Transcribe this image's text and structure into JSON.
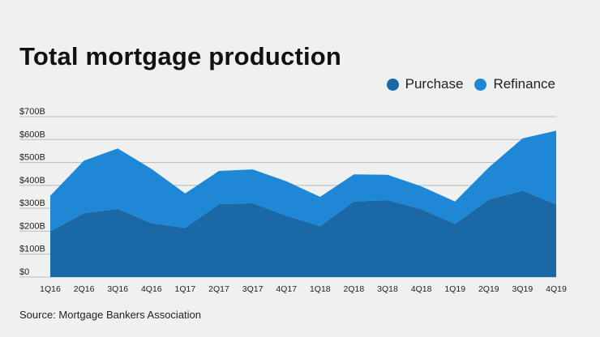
{
  "chart_data": {
    "type": "area",
    "stacked": true,
    "title": "Total mortgage production",
    "source": "Source: Mortgage Bankers Association",
    "categories": [
      "1Q16",
      "2Q16",
      "3Q16",
      "4Q16",
      "1Q17",
      "2Q17",
      "3Q17",
      "4Q17",
      "1Q18",
      "2Q18",
      "3Q18",
      "4Q18",
      "1Q19",
      "2Q19",
      "3Q19",
      "4Q19"
    ],
    "ylim": [
      0,
      700
    ],
    "yticks": [
      0,
      100,
      200,
      300,
      400,
      500,
      600,
      700
    ],
    "ytick_labels": [
      "$0",
      "$100B",
      "$200B",
      "$300B",
      "$400B",
      "$500B",
      "$600B",
      "$700B"
    ],
    "series": [
      {
        "name": "Purchase",
        "color": "#1a68a6",
        "values": [
          200,
          278,
          298,
          235,
          215,
          318,
          322,
          268,
          222,
          330,
          336,
          296,
          232,
          338,
          377,
          317
        ]
      },
      {
        "name": "Refinance",
        "color": "#1f88d6",
        "values": [
          155,
          230,
          263,
          237,
          150,
          145,
          148,
          150,
          128,
          118,
          110,
          100,
          98,
          140,
          228,
          322
        ]
      }
    ],
    "legend_position": "top-right",
    "grid": true
  }
}
